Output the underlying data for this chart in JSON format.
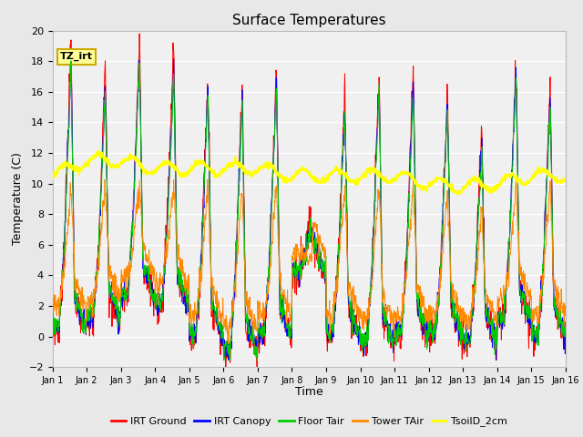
{
  "title": "Surface Temperatures",
  "xlabel": "Time",
  "ylabel": "Temperature (C)",
  "ylim": [
    -2,
    20
  ],
  "xlim": [
    0,
    15
  ],
  "xtick_labels": [
    "Jan 1",
    "Jan 2",
    "Jan 3",
    "Jan 4",
    "Jan 5",
    "Jan 6",
    "Jan 7",
    "Jan 8",
    "Jan 9",
    "Jan 10",
    "Jan 11",
    "Jan 12",
    "Jan 13",
    "Jan 14",
    "Jan 15",
    "Jan 16"
  ],
  "series_colors": {
    "IRT Ground": "#ff0000",
    "IRT Canopy": "#0000ff",
    "Floor Tair": "#00cc00",
    "Tower TAir": "#ff8800",
    "TsoilD_2cm": "#ffff00"
  },
  "annotation_text": "TZ_irt",
  "annotation_box_color": "#ffff99",
  "annotation_box_edge": "#ccaa00",
  "background_color": "#e8e8e8",
  "plot_bg_color": "#f0f0f0",
  "grid_color": "#ffffff",
  "title_fontsize": 11,
  "label_fontsize": 9,
  "tick_fontsize": 8,
  "figsize": [
    6.4,
    4.8
  ],
  "dpi": 100
}
